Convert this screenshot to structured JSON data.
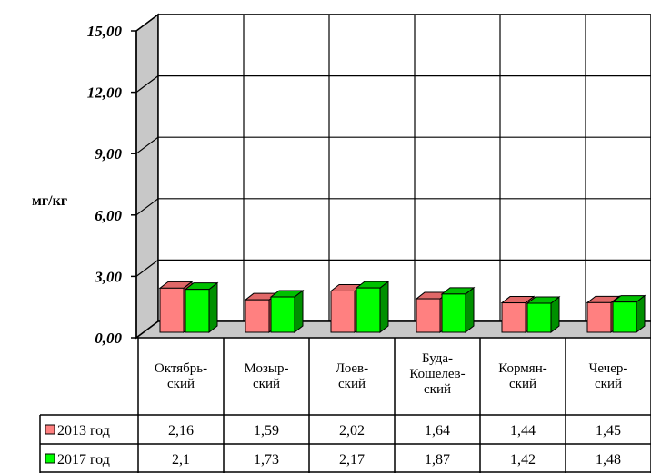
{
  "chart_data": {
    "type": "bar",
    "ylabel": "мг/кг",
    "ylim": [
      0,
      15
    ],
    "yticks": [
      "0,00",
      "3,00",
      "6,00",
      "9,00",
      "12,00",
      "15,00"
    ],
    "categories": [
      [
        "Октябрь-",
        "ский"
      ],
      [
        "Мозыр-",
        "ский"
      ],
      [
        "Лоев-",
        "ский"
      ],
      [
        "Буда-",
        "Кошелев-",
        "ский"
      ],
      [
        "Кормян-",
        "ский"
      ],
      [
        "Чечер-",
        "ский"
      ]
    ],
    "series": [
      {
        "name": "2013 год",
        "color": "#ff8080",
        "side_color": "#c04848",
        "top_color": "#e06868",
        "values": [
          2.16,
          1.59,
          2.02,
          1.64,
          1.44,
          1.45
        ],
        "labels": [
          "2,16",
          "1,59",
          "2,02",
          "1,64",
          "1,44",
          "1,45"
        ]
      },
      {
        "name": "2017 год",
        "color": "#00ff00",
        "side_color": "#009000",
        "top_color": "#00c000",
        "values": [
          2.1,
          1.73,
          2.17,
          1.87,
          1.42,
          1.48
        ],
        "labels": [
          "2,1",
          "1,73",
          "2,17",
          "1,87",
          "1,42",
          "1,48"
        ]
      }
    ],
    "grid": true,
    "legend": "table"
  }
}
